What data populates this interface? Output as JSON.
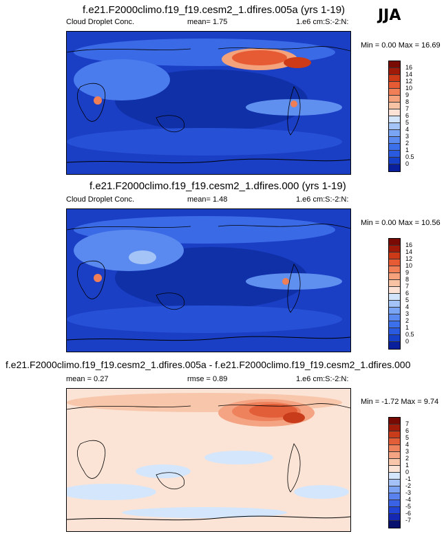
{
  "season": "JJA",
  "panels": [
    {
      "title": "f.e21.F2000climo.f19_f19.cesm2_1.dfires.005a (yrs 1-19)",
      "field": "Cloud Droplet Conc.",
      "mean": "mean=   1.75",
      "units": "1.e6 cm:S:-2:N:",
      "minmax": "Min =   0.00 Max =  16.69",
      "levels": [
        "16",
        "14",
        "12",
        "10",
        "9",
        "8",
        "7",
        "6",
        "5",
        "4",
        "3",
        "2",
        "1",
        "0.5",
        "0"
      ]
    },
    {
      "title": "f.e21.F2000climo.f19_f19.cesm2_1.dfires.000 (yrs 1-19)",
      "field": "Cloud Droplet Conc.",
      "mean": "mean=   1.48",
      "units": "1.e6 cm:S:-2:N:",
      "minmax": "Min =   0.00 Max =  10.56",
      "levels": [
        "16",
        "14",
        "12",
        "10",
        "9",
        "8",
        "7",
        "6",
        "5",
        "4",
        "3",
        "2",
        "1",
        "0.5",
        "0"
      ]
    },
    {
      "title": "f.e21.F2000climo.f19_f19.cesm2_1.dfires.005a - f.e21.F2000climo.f19_f19.cesm2_1.dfires.000",
      "mean": "mean =   0.27",
      "rmse": "rmse =   0.89",
      "units": "1.e6 cm:S:-2:N:",
      "minmax": "Min =  -1.72 Max =   9.74",
      "levels": [
        "7",
        "6",
        "5",
        "4",
        "3",
        "2",
        "1",
        "0",
        "-1",
        "-2",
        "-3",
        "-4",
        "-5",
        "-6",
        "-7"
      ]
    }
  ],
  "chart_data": [
    {
      "type": "heatmap",
      "title": "f.e21.F2000climo.f19_f19.cesm2_1.dfires.005a (yrs 1-19)",
      "variable": "Cloud Droplet Conc.",
      "units": "1.e6 cm^-2",
      "mean": 1.75,
      "min": 0.0,
      "max": 16.69,
      "colorbar_levels": [
        0,
        0.5,
        1,
        2,
        3,
        4,
        5,
        6,
        7,
        8,
        9,
        10,
        12,
        14,
        16
      ],
      "colors": [
        "#0a1f9c",
        "#1640c8",
        "#2a5ae0",
        "#3b70ea",
        "#5a8af0",
        "#7aa4f4",
        "#a4c4f8",
        "#d2e4fb",
        "#fbe2d4",
        "#f8c2a4",
        "#f5a27c",
        "#f07e56",
        "#e65a34",
        "#cc3a18",
        "#a01a0a",
        "#7a0a04"
      ],
      "grid": false
    },
    {
      "type": "heatmap",
      "title": "f.e21.F2000climo.f19_f19.cesm2_1.dfires.000 (yrs 1-19)",
      "variable": "Cloud Droplet Conc.",
      "units": "1.e6 cm^-2",
      "mean": 1.48,
      "min": 0.0,
      "max": 10.56,
      "colorbar_levels": [
        0,
        0.5,
        1,
        2,
        3,
        4,
        5,
        6,
        7,
        8,
        9,
        10,
        12,
        14,
        16
      ],
      "colors": [
        "#0a1f9c",
        "#1640c8",
        "#2a5ae0",
        "#3b70ea",
        "#5a8af0",
        "#7aa4f4",
        "#a4c4f8",
        "#d2e4fb",
        "#fbe2d4",
        "#f8c2a4",
        "#f5a27c",
        "#f07e56",
        "#e65a34",
        "#cc3a18",
        "#a01a0a",
        "#7a0a04"
      ],
      "grid": false
    },
    {
      "type": "heatmap",
      "title": "f.e21.F2000climo.f19_f19.cesm2_1.dfires.005a - f.e21.F2000climo.f19_f19.cesm2_1.dfires.000",
      "variable": "Cloud Droplet Conc.",
      "units": "1.e6 cm^-2",
      "mean": 0.27,
      "rmse": 0.89,
      "min": -1.72,
      "max": 9.74,
      "colorbar_levels": [
        -7,
        -6,
        -5,
        -4,
        -3,
        -2,
        -1,
        0,
        1,
        2,
        3,
        4,
        5,
        6,
        7
      ],
      "colors": [
        "#08106e",
        "#1428b4",
        "#2244d4",
        "#3a62e4",
        "#5a82ee",
        "#7ca2f4",
        "#a4c2f8",
        "#d4e6fb",
        "#fbe4d6",
        "#f8c6aa",
        "#f4a482",
        "#ee825c",
        "#e25e38",
        "#c83c1c",
        "#a01c0a",
        "#780a04"
      ],
      "grid": false
    }
  ]
}
